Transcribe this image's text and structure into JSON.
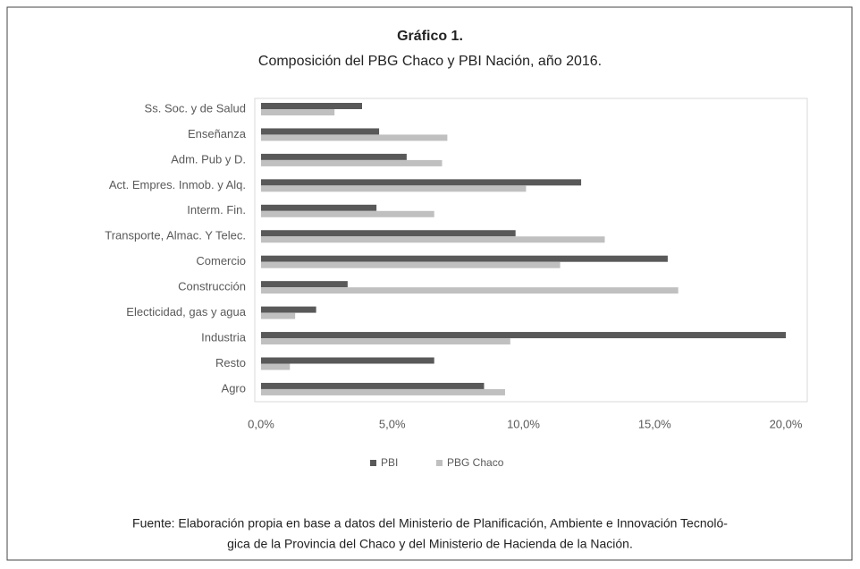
{
  "chart_data": {
    "type": "bar",
    "orientation": "horizontal",
    "title": "Gráfico 1.",
    "subtitle": "Composición del PBG Chaco y PBI Nación, año 2016.",
    "categories": [
      "Ss. Soc. y de Salud",
      "Enseñanza",
      "Adm. Pub y D.",
      "Act. Empres. Inmob. y  Alq.",
      "Interm. Fin.",
      "Transporte, Almac. Y Telec.",
      "Comercio",
      "Construcción",
      "Electicidad, gas y agua",
      "Industria",
      "Resto",
      "Agro"
    ],
    "series": [
      {
        "name": "PBI",
        "color": "#595959",
        "values": [
          3.85,
          4.5,
          5.55,
          12.2,
          4.4,
          9.7,
          15.5,
          3.3,
          2.1,
          20.0,
          6.6,
          8.5
        ]
      },
      {
        "name": "PBG Chaco",
        "color": "#c0c0c0",
        "values": [
          2.8,
          7.1,
          6.9,
          10.1,
          6.6,
          13.1,
          11.4,
          15.9,
          1.3,
          9.5,
          1.1,
          9.3
        ]
      }
    ],
    "xlim": [
      0,
      20
    ],
    "xticks": [
      {
        "value": 0,
        "label": "0,0%"
      },
      {
        "value": 5,
        "label": "5,0%"
      },
      {
        "value": 10,
        "label": "10,0%"
      },
      {
        "value": 15,
        "label": "15,0%"
      },
      {
        "value": 20,
        "label": "20,0%"
      }
    ],
    "legend": "bottom",
    "source": [
      "Fuente: Elaboración propia en base a datos del Ministerio de Planificación, Ambiente e Innovación Tecnoló-",
      "gica de la Provincia del Chaco y del Ministerio de Hacienda de la Nación."
    ]
  }
}
